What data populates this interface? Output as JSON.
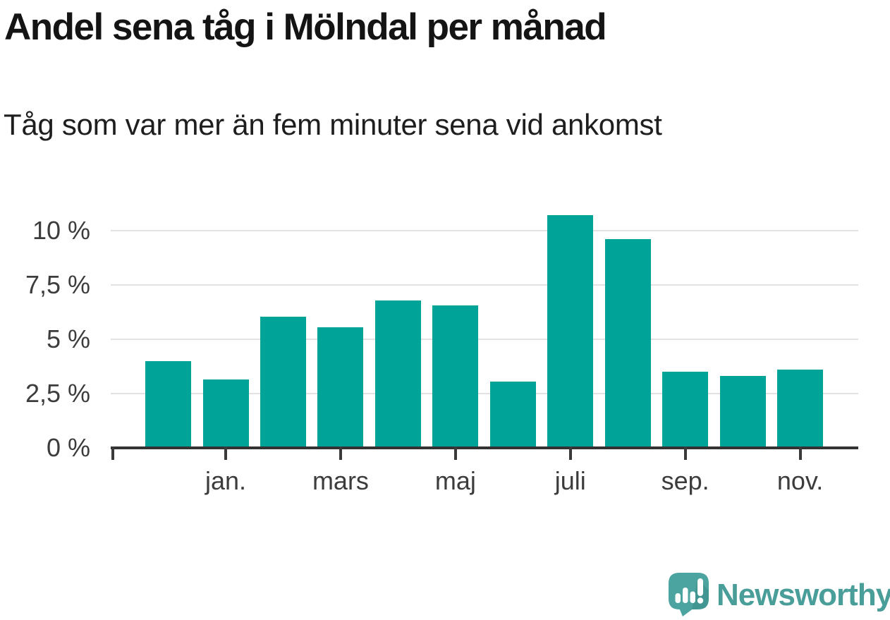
{
  "chart_data": {
    "type": "bar",
    "title": "Andel sena tåg i Mölndal per månad",
    "subtitle": "Tåg som var mer än fem minuter sena vid ankomst",
    "values": [
      4.0,
      3.15,
      6.05,
      5.55,
      6.8,
      6.55,
      3.05,
      10.7,
      9.6,
      3.5,
      3.3,
      3.6
    ],
    "x_tick_labels": [
      "jan.",
      "mars",
      "maj",
      "juli",
      "sep.",
      "nov."
    ],
    "x_tick_bar_indices": [
      1,
      3,
      5,
      7,
      9,
      11
    ],
    "y_tick_labels": [
      "0 %",
      "2,5 %",
      "5 %",
      "7,5 %",
      "10 %"
    ],
    "y_tick_values": [
      0,
      2.5,
      5,
      7.5,
      10
    ],
    "ylim": [
      0,
      11
    ],
    "unit": "%",
    "decimal_separator": ",",
    "bar_color": "#00a398",
    "grid": true,
    "legend": "none"
  },
  "footer": {
    "brand": "Newsworthy",
    "wordmark_color": "#4a9e9a",
    "logo_bubble_color": "#4ba49f",
    "logo_glyph_color": "#ffffff"
  }
}
